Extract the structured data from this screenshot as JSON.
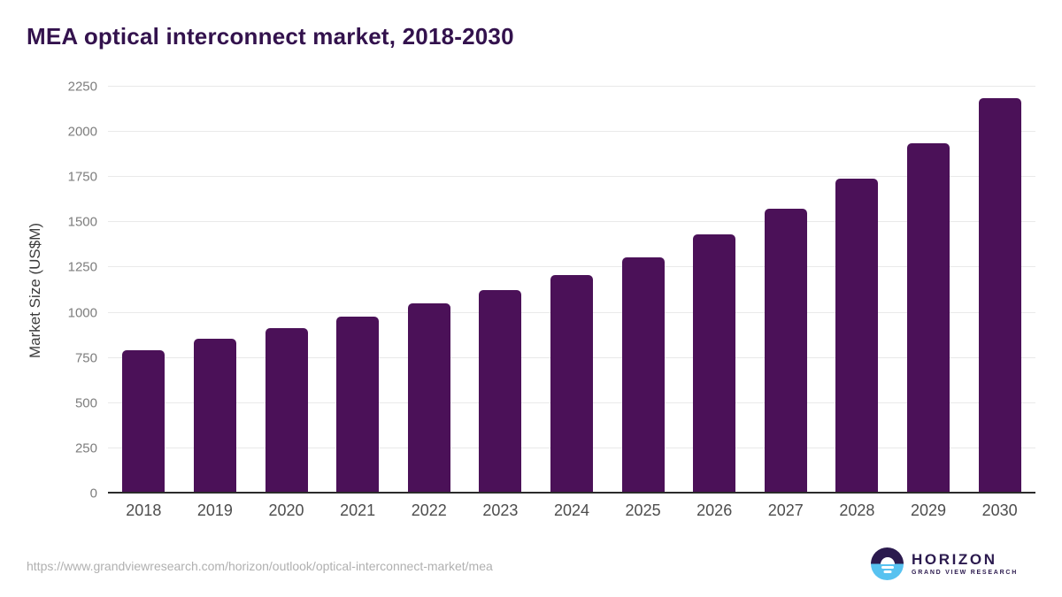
{
  "header": {
    "title": "MEA optical interconnect market, 2018-2030"
  },
  "chart_data": {
    "type": "bar",
    "title": "MEA optical interconnect market, 2018-2030",
    "xlabel": "",
    "ylabel": "Market Size (US$M)",
    "categories": [
      "2018",
      "2019",
      "2020",
      "2021",
      "2022",
      "2023",
      "2024",
      "2025",
      "2026",
      "2027",
      "2028",
      "2029",
      "2030"
    ],
    "values": [
      794,
      857,
      914,
      976,
      1052,
      1126,
      1210,
      1304,
      1431,
      1573,
      1741,
      1939,
      2186
    ],
    "ylim": [
      0,
      2250
    ],
    "yticks": [
      0,
      250,
      500,
      750,
      1000,
      1250,
      1500,
      1750,
      2000,
      2250
    ],
    "grid": true,
    "legend": "none",
    "bar_color": "#4b1158"
  },
  "colors": {
    "bar": "#4b1158",
    "title": "#33124d",
    "axis_label": "#3c3c3c",
    "tick_label": "#7d7d7d",
    "gridline": "#e9e9e9",
    "logo_dark": "#2b1a4e",
    "logo_blue": "#57c2f0",
    "url_text": "#b0b0b0"
  },
  "footer": {
    "source_url": "https://www.grandviewresearch.com/horizon/outlook/optical-interconnect-market/mea",
    "logo": {
      "brand": "HORIZON",
      "subtitle": "GRAND VIEW RESEARCH"
    }
  }
}
